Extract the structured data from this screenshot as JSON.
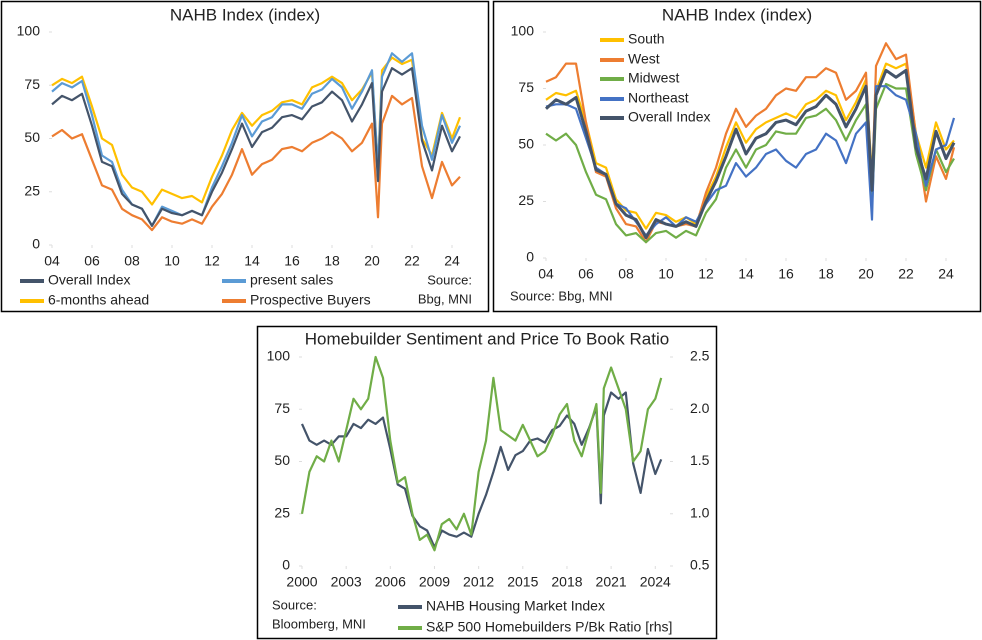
{
  "chart_data": [
    {
      "type": "line",
      "title": "NAHB Index (index)",
      "x": [
        2004,
        2004.5,
        2005,
        2005.5,
        2006,
        2006.5,
        2007,
        2007.5,
        2008,
        2008.5,
        2009,
        2009.5,
        2010,
        2010.5,
        2011,
        2011.5,
        2012,
        2012.5,
        2013,
        2013.5,
        2014,
        2014.5,
        2015,
        2015.5,
        2016,
        2016.5,
        2017,
        2017.5,
        2018,
        2018.5,
        2019,
        2019.5,
        2020,
        2020.3,
        2020.5,
        2021,
        2021.5,
        2022,
        2022.5,
        2023,
        2023.5,
        2024,
        2024.4
      ],
      "xlim": [
        2004,
        2024.5
      ],
      "xticks": [
        {
          "value": 2004,
          "label": "04"
        },
        {
          "value": 2006,
          "label": "06"
        },
        {
          "value": 2008,
          "label": "08"
        },
        {
          "value": 2010,
          "label": "10"
        },
        {
          "value": 2012,
          "label": "12"
        },
        {
          "value": 2014,
          "label": "14"
        },
        {
          "value": 2016,
          "label": "16"
        },
        {
          "value": 2018,
          "label": "18"
        },
        {
          "value": 2020,
          "label": "20"
        },
        {
          "value": 2022,
          "label": "22"
        },
        {
          "value": 2024,
          "label": "24"
        }
      ],
      "ylim": [
        0,
        100
      ],
      "yticks": [
        0,
        25,
        50,
        75,
        100
      ],
      "series": [
        {
          "name": "Overall Index",
          "color": "#44546a",
          "values": [
            66,
            70,
            68,
            71,
            56,
            39,
            37,
            24,
            19,
            17,
            9,
            17,
            15,
            14,
            16,
            14,
            25,
            34,
            45,
            57,
            46,
            53,
            55,
            60,
            61,
            59,
            65,
            67,
            72,
            68,
            58,
            66,
            76,
            30,
            72,
            83,
            80,
            83,
            49,
            35,
            56,
            44,
            51
          ]
        },
        {
          "name": "present sales",
          "color": "#5b9bd5",
          "values": [
            72,
            76,
            74,
            77,
            61,
            42,
            39,
            26,
            19,
            17,
            9,
            18,
            16,
            14,
            16,
            14,
            27,
            37,
            48,
            61,
            51,
            58,
            60,
            66,
            66,
            64,
            71,
            73,
            78,
            74,
            64,
            72,
            82,
            36,
            79,
            90,
            86,
            90,
            56,
            40,
            61,
            48,
            56
          ]
        },
        {
          "name": "6-months ahead",
          "color": "#ffc000",
          "values": [
            75,
            78,
            76,
            79,
            65,
            50,
            47,
            33,
            27,
            25,
            19,
            26,
            24,
            22,
            23,
            20,
            32,
            42,
            54,
            62,
            56,
            61,
            63,
            67,
            68,
            66,
            74,
            76,
            79,
            76,
            68,
            73,
            81,
            36,
            82,
            88,
            85,
            87,
            50,
            42,
            62,
            50,
            60
          ]
        },
        {
          "name": "Prospective Buyers",
          "color": "#ed7d31",
          "values": [
            51,
            54,
            50,
            52,
            40,
            28,
            26,
            17,
            14,
            12,
            7,
            13,
            11,
            10,
            12,
            10,
            18,
            24,
            33,
            45,
            33,
            38,
            40,
            45,
            46,
            44,
            48,
            50,
            53,
            50,
            44,
            48,
            57,
            13,
            57,
            70,
            66,
            69,
            37,
            22,
            39,
            28,
            32
          ]
        }
      ],
      "source": [
        "Source:",
        "Bbg, MNI"
      ]
    },
    {
      "type": "line",
      "title": "NAHB Index (index)",
      "x": [
        2004,
        2004.5,
        2005,
        2005.5,
        2006,
        2006.5,
        2007,
        2007.5,
        2008,
        2008.5,
        2009,
        2009.5,
        2010,
        2010.5,
        2011,
        2011.5,
        2012,
        2012.5,
        2013,
        2013.5,
        2014,
        2014.5,
        2015,
        2015.5,
        2016,
        2016.5,
        2017,
        2017.5,
        2018,
        2018.5,
        2019,
        2019.5,
        2020,
        2020.3,
        2020.5,
        2021,
        2021.5,
        2022,
        2022.5,
        2023,
        2023.5,
        2024,
        2024.4
      ],
      "xlim": [
        2004,
        2025
      ],
      "xticks": [
        {
          "value": 2004,
          "label": "04"
        },
        {
          "value": 2006,
          "label": "06"
        },
        {
          "value": 2008,
          "label": "08"
        },
        {
          "value": 2010,
          "label": "10"
        },
        {
          "value": 2012,
          "label": "12"
        },
        {
          "value": 2014,
          "label": "14"
        },
        {
          "value": 2016,
          "label": "16"
        },
        {
          "value": 2018,
          "label": "18"
        },
        {
          "value": 2020,
          "label": "20"
        },
        {
          "value": 2022,
          "label": "22"
        },
        {
          "value": 2024,
          "label": "24"
        }
      ],
      "ylim": [
        0,
        100
      ],
      "yticks": [
        0,
        25,
        50,
        75,
        100
      ],
      "series": [
        {
          "name": "South",
          "color": "#ffc000",
          "values": [
            70,
            73,
            72,
            74,
            60,
            42,
            40,
            26,
            21,
            20,
            13,
            20,
            19,
            16,
            18,
            15,
            27,
            36,
            49,
            60,
            51,
            57,
            60,
            62,
            64,
            62,
            68,
            70,
            74,
            72,
            61,
            69,
            79,
            36,
            74,
            86,
            84,
            86,
            55,
            40,
            60,
            48,
            52
          ]
        },
        {
          "name": "West",
          "color": "#ed7d31",
          "values": [
            78,
            80,
            86,
            86,
            60,
            38,
            36,
            22,
            15,
            14,
            7,
            16,
            15,
            14,
            15,
            14,
            29,
            40,
            55,
            66,
            58,
            63,
            66,
            72,
            75,
            74,
            80,
            80,
            84,
            82,
            70,
            74,
            82,
            30,
            85,
            95,
            88,
            90,
            54,
            25,
            45,
            35,
            49
          ]
        },
        {
          "name": "Midwest",
          "color": "#70ad47",
          "values": [
            55,
            52,
            55,
            50,
            38,
            28,
            26,
            15,
            10,
            11,
            7,
            11,
            12,
            9,
            12,
            10,
            20,
            26,
            40,
            48,
            40,
            48,
            50,
            56,
            55,
            55,
            62,
            63,
            66,
            61,
            52,
            61,
            68,
            22,
            66,
            77,
            75,
            75,
            46,
            30,
            48,
            38,
            44
          ]
        },
        {
          "name": "Northeast",
          "color": "#4472c4",
          "values": [
            67,
            68,
            68,
            66,
            53,
            40,
            37,
            24,
            22,
            16,
            10,
            15,
            18,
            14,
            18,
            16,
            24,
            30,
            32,
            42,
            36,
            40,
            46,
            48,
            43,
            40,
            46,
            48,
            55,
            52,
            42,
            55,
            60,
            17,
            76,
            76,
            72,
            70,
            55,
            32,
            48,
            50,
            62
          ]
        },
        {
          "name": "Overall Index",
          "color": "#44546a",
          "values": [
            66,
            70,
            68,
            71,
            56,
            39,
            37,
            24,
            19,
            17,
            9,
            17,
            15,
            14,
            16,
            14,
            25,
            34,
            45,
            57,
            46,
            53,
            55,
            60,
            61,
            59,
            65,
            67,
            72,
            68,
            58,
            66,
            76,
            30,
            72,
            83,
            80,
            83,
            49,
            35,
            56,
            44,
            51
          ]
        }
      ],
      "source": [
        "Source: Bbg, MNI"
      ]
    },
    {
      "type": "line",
      "title": "Homebuilder Sentiment and Price To Book Ratio",
      "x": [
        2000,
        2000.5,
        2001,
        2001.5,
        2002,
        2002.5,
        2003,
        2003.5,
        2004,
        2004.5,
        2005,
        2005.5,
        2006,
        2006.5,
        2007,
        2007.5,
        2008,
        2008.5,
        2009,
        2009.5,
        2010,
        2010.5,
        2011,
        2011.5,
        2012,
        2012.5,
        2013,
        2013.5,
        2014,
        2014.5,
        2015,
        2015.5,
        2016,
        2016.5,
        2017,
        2017.5,
        2018,
        2018.5,
        2019,
        2019.5,
        2020,
        2020.3,
        2020.5,
        2021,
        2021.5,
        2022,
        2022.5,
        2023,
        2023.5,
        2024,
        2024.4
      ],
      "xlim": [
        2000,
        2025
      ],
      "xticks": [
        2000,
        2003,
        2006,
        2009,
        2012,
        2015,
        2018,
        2021,
        2024
      ],
      "ylim": [
        0,
        100
      ],
      "yticks": [
        0,
        25,
        50,
        75,
        100
      ],
      "y2lim": [
        0.5,
        2.5
      ],
      "y2ticks": [
        0.5,
        {
          "value": 1,
          "label": "1.0"
        },
        1.5,
        {
          "value": 2,
          "label": "2.0"
        },
        2.5
      ],
      "series": [
        {
          "name": "NAHB Housing Market Index",
          "color": "#44546a",
          "values": [
            68,
            60,
            58,
            60,
            58,
            62,
            62,
            68,
            66,
            70,
            68,
            71,
            56,
            39,
            37,
            24,
            19,
            17,
            9,
            17,
            15,
            14,
            16,
            14,
            25,
            34,
            45,
            57,
            46,
            53,
            55,
            60,
            61,
            59,
            65,
            67,
            72,
            68,
            58,
            66,
            76,
            30,
            72,
            83,
            80,
            83,
            49,
            35,
            56,
            44,
            51
          ]
        },
        {
          "name": "S&P 500 Homebuilders P/Bk Ratio [rhs]",
          "color": "#70ad47",
          "axis": "y2",
          "values": [
            1.0,
            1.4,
            1.55,
            1.5,
            1.7,
            1.5,
            1.8,
            2.1,
            2.0,
            2.1,
            2.5,
            2.3,
            1.7,
            1.3,
            1.35,
            1.0,
            0.75,
            0.8,
            0.65,
            0.9,
            0.95,
            0.85,
            1.0,
            0.8,
            1.4,
            1.7,
            2.3,
            1.8,
            1.75,
            1.7,
            1.85,
            1.7,
            1.55,
            1.6,
            1.75,
            1.95,
            2.05,
            1.7,
            1.55,
            1.8,
            2.05,
            1.2,
            2.2,
            2.4,
            2.2,
            2.0,
            1.5,
            1.6,
            2.0,
            2.1,
            2.3
          ]
        }
      ],
      "source": [
        "Source:",
        "Bloomberg, MNI"
      ]
    }
  ]
}
